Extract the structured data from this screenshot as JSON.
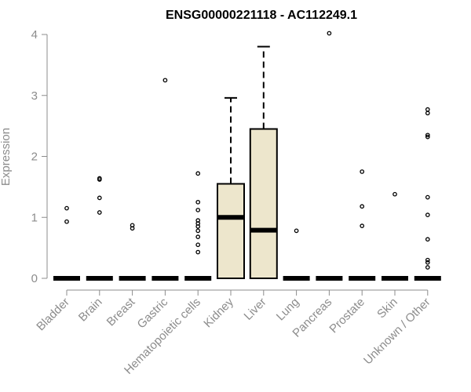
{
  "chart_data": {
    "type": "box",
    "title": "ENSG00000221118 - AC112249.1",
    "ylabel": "Expression",
    "xlabel": "",
    "ylim": [
      0,
      4
    ],
    "yticks": [
      0,
      1,
      2,
      3,
      4
    ],
    "grid": false,
    "legend": "none",
    "colors": {
      "box_fill": "#ede6cc",
      "box_stroke": "#000000",
      "axis": "#8c8c8c"
    },
    "categories": [
      "Bladder",
      "Brain",
      "Breast",
      "Gastric",
      "Hematopoietic cells",
      "Kidney",
      "Liver",
      "Lung",
      "Pancreas",
      "Prostate",
      "Skin",
      "Unknown / Other"
    ],
    "boxes": [
      {
        "category": "Bladder",
        "q1": 0,
        "median": 0,
        "q3": 0,
        "whisker_low": 0,
        "whisker_high": 0,
        "outliers": [
          0.93,
          1.15
        ]
      },
      {
        "category": "Brain",
        "q1": 0,
        "median": 0,
        "q3": 0,
        "whisker_low": 0,
        "whisker_high": 0,
        "outliers": [
          1.08,
          1.32,
          1.62,
          1.64
        ]
      },
      {
        "category": "Breast",
        "q1": 0,
        "median": 0,
        "q3": 0,
        "whisker_low": 0,
        "whisker_high": 0,
        "outliers": [
          0.82,
          0.87
        ]
      },
      {
        "category": "Gastric",
        "q1": 0,
        "median": 0,
        "q3": 0,
        "whisker_low": 0,
        "whisker_high": 0,
        "outliers": [
          3.25
        ]
      },
      {
        "category": "Hematopoietic cells",
        "q1": 0,
        "median": 0,
        "q3": 0,
        "whisker_low": 0,
        "whisker_high": 0,
        "outliers": [
          0.43,
          0.55,
          0.68,
          0.78,
          0.85,
          0.9,
          0.95,
          1.12,
          1.25,
          1.72
        ]
      },
      {
        "category": "Kidney",
        "q1": 0,
        "median": 1.0,
        "q3": 1.55,
        "whisker_low": 0,
        "whisker_high": 2.96,
        "outliers": []
      },
      {
        "category": "Liver",
        "q1": 0,
        "median": 0.79,
        "q3": 2.45,
        "whisker_low": 0,
        "whisker_high": 3.8,
        "outliers": []
      },
      {
        "category": "Lung",
        "q1": 0,
        "median": 0,
        "q3": 0,
        "whisker_low": 0,
        "whisker_high": 0,
        "outliers": [
          0.78
        ]
      },
      {
        "category": "Pancreas",
        "q1": 0,
        "median": 0,
        "q3": 0,
        "whisker_low": 0,
        "whisker_high": 0,
        "outliers": [
          4.02
        ]
      },
      {
        "category": "Prostate",
        "q1": 0,
        "median": 0,
        "q3": 0,
        "whisker_low": 0,
        "whisker_high": 0,
        "outliers": [
          0.86,
          1.18,
          1.75
        ]
      },
      {
        "category": "Skin",
        "q1": 0,
        "median": 0,
        "q3": 0,
        "whisker_low": 0,
        "whisker_high": 0,
        "outliers": [
          1.38
        ]
      },
      {
        "category": "Unknown / Other",
        "q1": 0,
        "median": 0,
        "q3": 0,
        "whisker_low": 0,
        "whisker_high": 0,
        "outliers": [
          0.18,
          0.26,
          0.3,
          0.64,
          1.04,
          1.33,
          2.32,
          2.35,
          2.71,
          2.77
        ]
      }
    ]
  }
}
